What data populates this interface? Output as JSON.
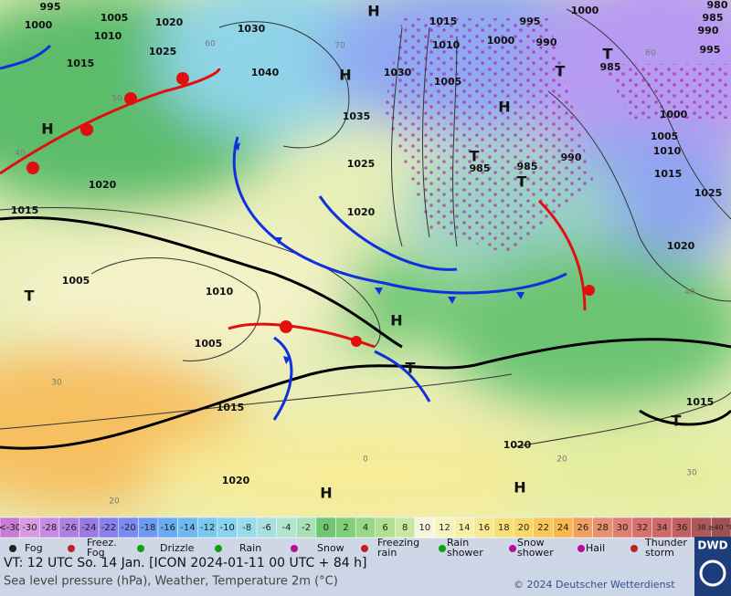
{
  "map": {
    "pressure_labels": [
      "995",
      "1005",
      "1020",
      "1000",
      "1010",
      "1025",
      "1015",
      "1030",
      "1040",
      "1015",
      "995",
      "1000",
      "980",
      "985",
      "990",
      "995",
      "1010",
      "1000",
      "990",
      "985",
      "1030",
      "1005",
      "1035",
      "1000",
      "1005",
      "1010",
      "1015",
      "1025",
      "990",
      "985",
      "985",
      "1025",
      "1020",
      "1015",
      "1020",
      "1005",
      "1010",
      "1005",
      "1020",
      "1015",
      "1015",
      "1020",
      "1020"
    ],
    "centers": [
      "H",
      "H",
      "H",
      "H",
      "T",
      "T",
      "T",
      "T",
      "T",
      "H",
      "T",
      "T",
      "H",
      "H"
    ],
    "grid_labels": [
      "60",
      "70",
      "50",
      "40",
      "30",
      "20",
      "0",
      "20",
      "30",
      "40",
      "60"
    ],
    "scale": {
      "labels": [
        "<-30",
        "-30",
        "-28",
        "-26",
        "-24",
        "-22",
        "-20",
        "-18",
        "-16",
        "-14",
        "-12",
        "-10",
        "-8",
        "-6",
        "-4",
        "-2",
        "0",
        "2",
        "4",
        "6",
        "8",
        "10",
        "12",
        "14",
        "16",
        "18",
        "20",
        "22",
        "24",
        "26",
        "28",
        "30",
        "32",
        "34",
        "36",
        "38",
        "≥40 °C"
      ],
      "colors": [
        "#c77dd3",
        "#d79be3",
        "#c68ce3",
        "#b07fe3",
        "#9b79e3",
        "#8a80ea",
        "#7a8bf1",
        "#6e9bf1",
        "#6aabf0",
        "#70b9f0",
        "#7ac8f0",
        "#88d4f0",
        "#98dcec",
        "#a8e0e0",
        "#b2e5d0",
        "#a8e0b8",
        "#6fc770",
        "#80d078",
        "#98d888",
        "#b0e090",
        "#c8e8a0",
        "#f6f6dc",
        "#f8f4c0",
        "#f8f0a8",
        "#f8e890",
        "#f8e078",
        "#f8d868",
        "#f8c858",
        "#f8b850",
        "#f0a060",
        "#e89070",
        "#e08070",
        "#d87070",
        "#d06868",
        "#c06060",
        "#b05858",
        "#a05050"
      ]
    },
    "legend": [
      [
        "Fog"
      ],
      [
        "Freez.",
        "Fog"
      ],
      [
        "Drizzle"
      ],
      [
        "Rain"
      ],
      [
        "Snow"
      ],
      [
        "Freezing",
        "rain"
      ],
      [
        "Rain",
        "shower"
      ],
      [
        "Snow",
        "shower"
      ],
      [
        "Hail"
      ],
      [
        "Thunder",
        "storm"
      ]
    ],
    "footer": {
      "valid_time": "VT: 12 UTC So.  14 Jan. [ICON 2024-01-11  00 UTC + 84 h]",
      "description": "Sea level pressure (hPa), Weather, Temperature 2m (°C)",
      "copyright": "© 2024 Deutscher Wetterdienst",
      "logo": "DWD"
    }
  }
}
